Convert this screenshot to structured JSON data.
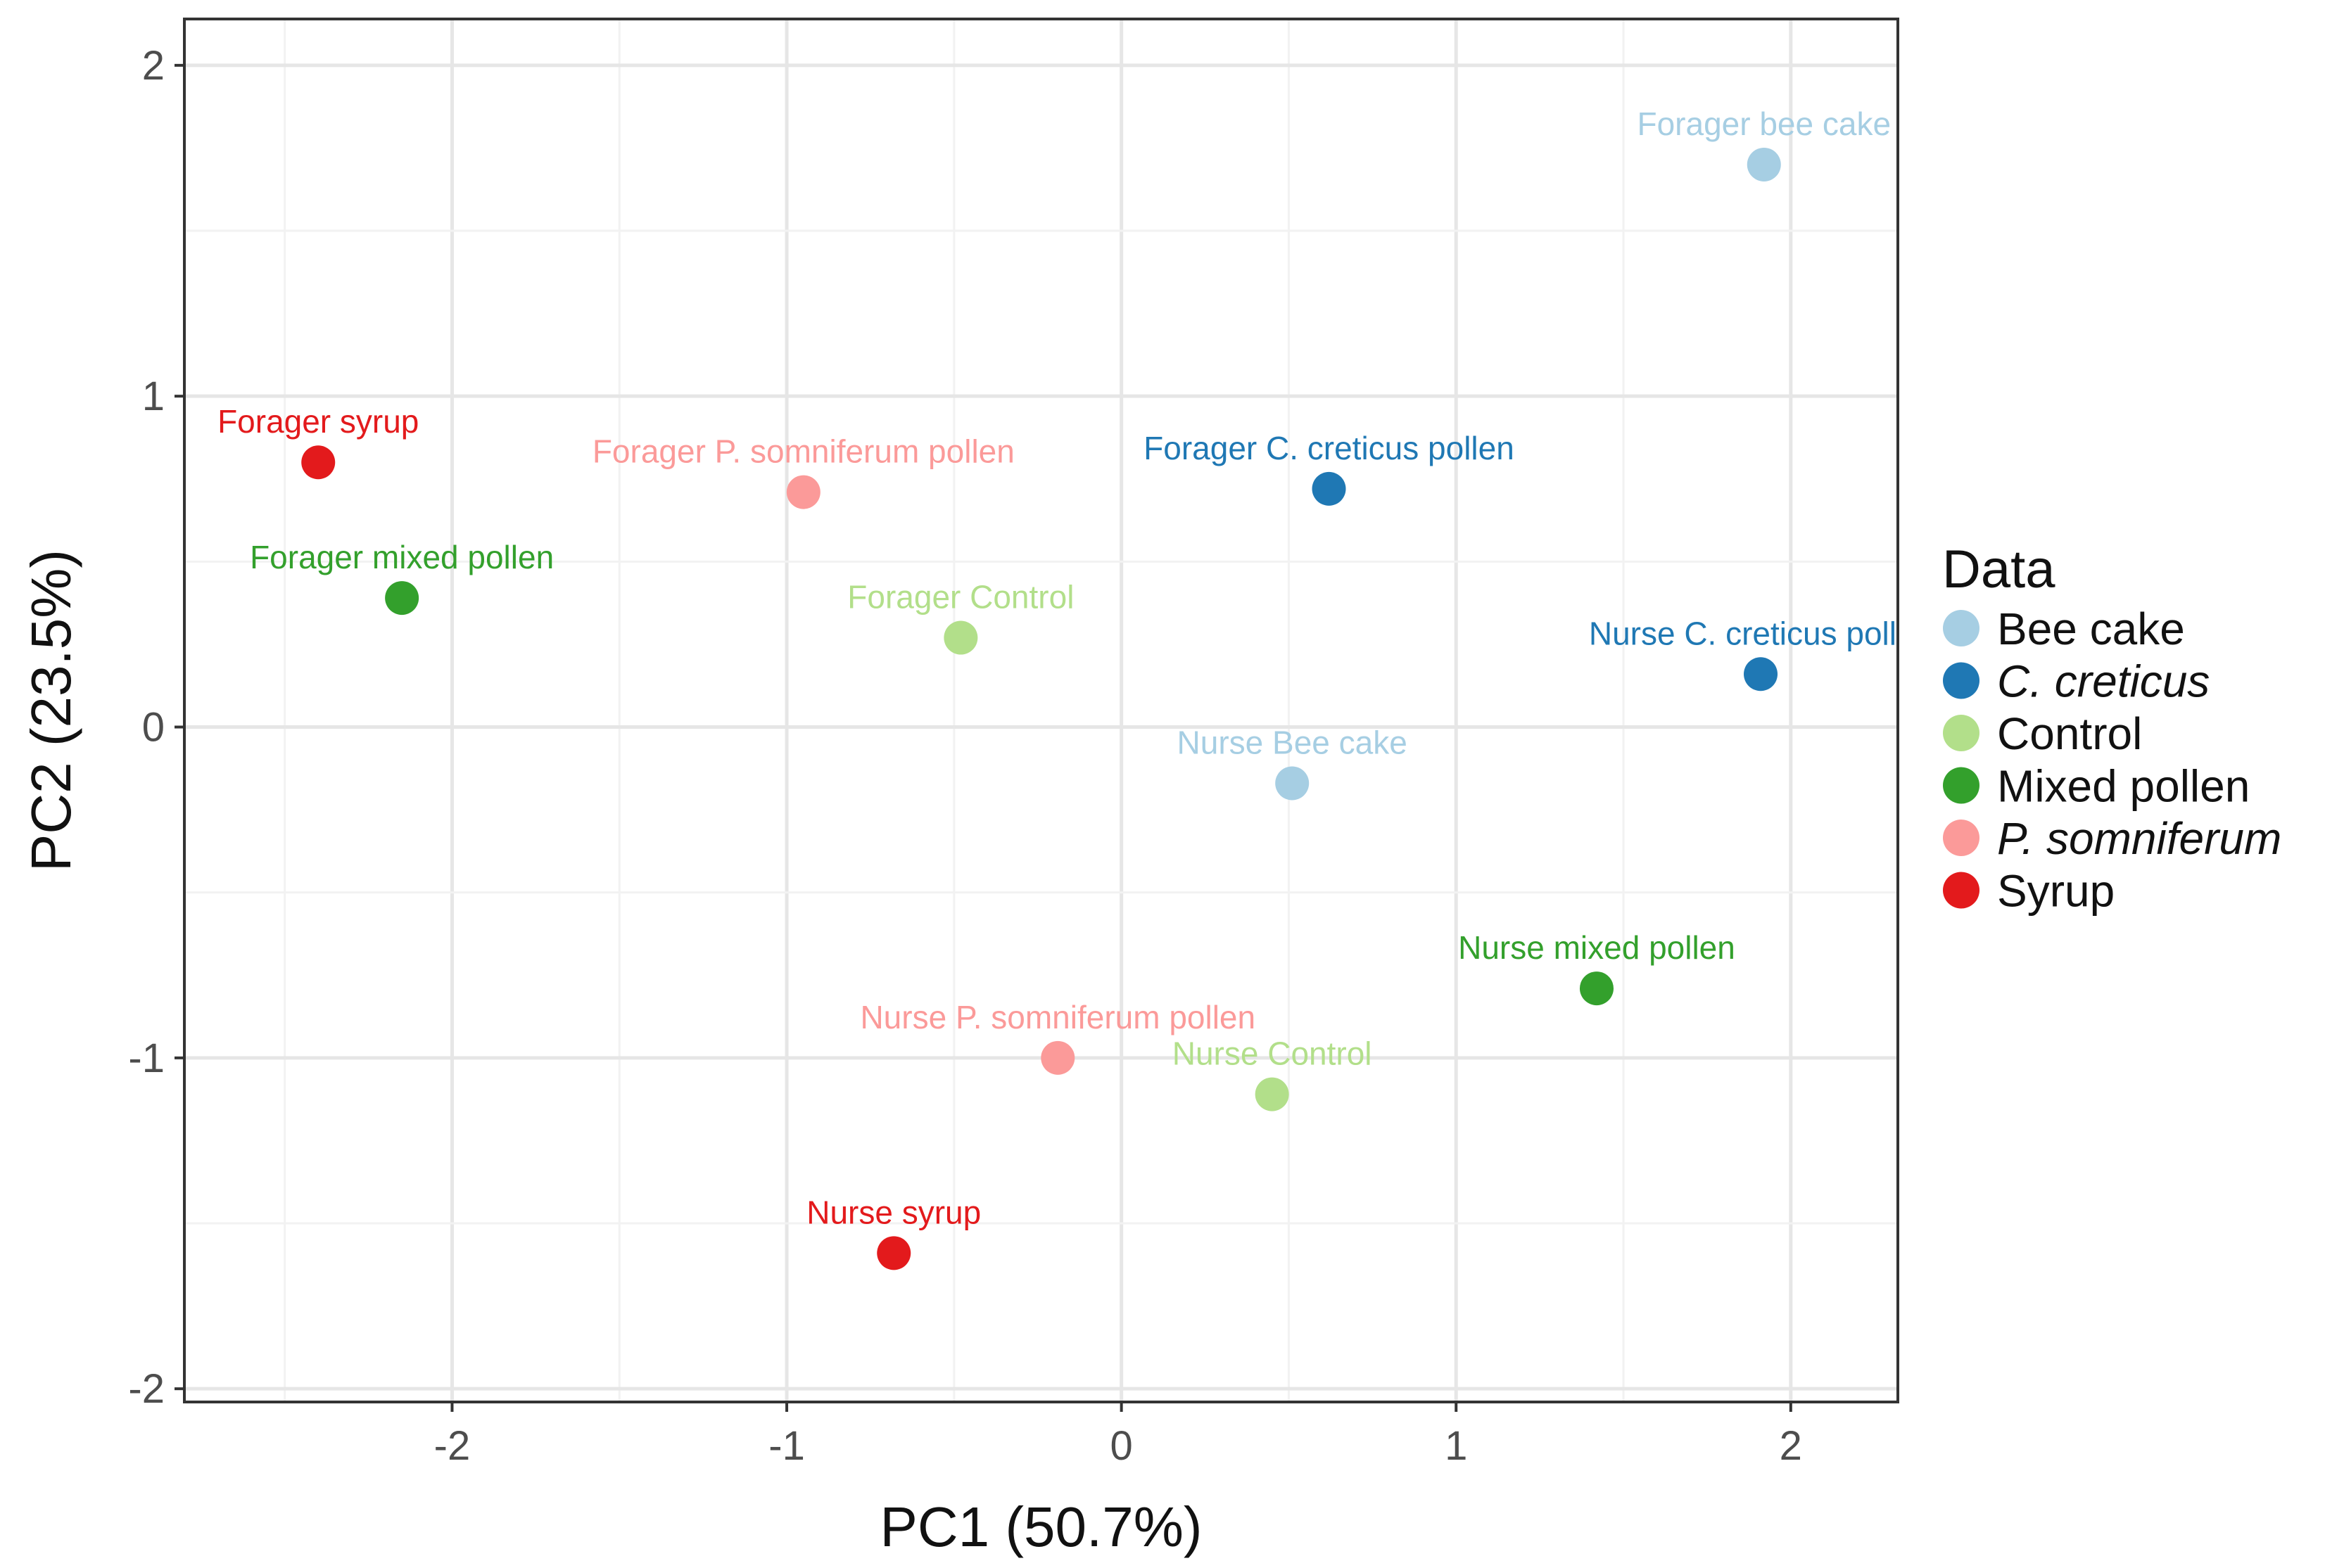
{
  "chart_data": {
    "type": "scatter",
    "xlabel": "PC1 (50.7%)",
    "ylabel": "PC2 (23.5%)",
    "xlim": [
      -2.8,
      2.32
    ],
    "ylim": [
      -2.04,
      2.14
    ],
    "x_ticks": [
      -2,
      -1,
      0,
      1,
      2
    ],
    "y_ticks": [
      -2,
      -1,
      0,
      1,
      2
    ],
    "x_tick_labels": [
      "-2",
      "-1",
      "0",
      "1",
      "2"
    ],
    "y_tick_labels": [
      "-2",
      "-1",
      "0",
      "1",
      "2"
    ],
    "grid": true,
    "legend": {
      "title": "Data",
      "placement": "right",
      "entries": [
        {
          "label": "Bee cake",
          "color": "#a6cee3",
          "italic": false
        },
        {
          "label": "C. creticus",
          "color": "#1f78b4",
          "italic": true
        },
        {
          "label": "Control",
          "color": "#b2df8a",
          "italic": false
        },
        {
          "label": "Mixed pollen",
          "color": "#33a02c",
          "italic": false
        },
        {
          "label": "P. somniferum",
          "color": "#fb9a99",
          "italic": true
        },
        {
          "label": "Syrup",
          "color": "#e31a1c",
          "italic": false
        }
      ]
    },
    "points": [
      {
        "label": "Forager bee cake",
        "group": "Bee cake",
        "x": 1.92,
        "y": 1.7
      },
      {
        "label": "Forager syrup",
        "group": "Syrup",
        "x": -2.4,
        "y": 0.8
      },
      {
        "label": "Forager P. somniferum pollen",
        "group": "P. somniferum",
        "x": -0.95,
        "y": 0.71
      },
      {
        "label": "Forager C. creticus pollen",
        "group": "C. creticus",
        "x": 0.62,
        "y": 0.72
      },
      {
        "label": "Forager mixed pollen",
        "group": "Mixed pollen",
        "x": -2.15,
        "y": 0.39
      },
      {
        "label": "Forager Control",
        "group": "Control",
        "x": -0.48,
        "y": 0.27
      },
      {
        "label": "Nurse C. creticus pollen",
        "group": "C. creticus",
        "x": 1.91,
        "y": 0.16
      },
      {
        "label": "Nurse Bee cake",
        "group": "Bee cake",
        "x": 0.51,
        "y": -0.17
      },
      {
        "label": "Nurse mixed pollen",
        "group": "Mixed pollen",
        "x": 1.42,
        "y": -0.79
      },
      {
        "label": "Nurse P. somniferum pollen",
        "group": "P. somniferum",
        "x": -0.19,
        "y": -1.0
      },
      {
        "label": "Nurse Control",
        "group": "Control",
        "x": 0.45,
        "y": -1.11
      },
      {
        "label": "Nurse syrup",
        "group": "Syrup",
        "x": -0.68,
        "y": -1.59
      }
    ]
  }
}
